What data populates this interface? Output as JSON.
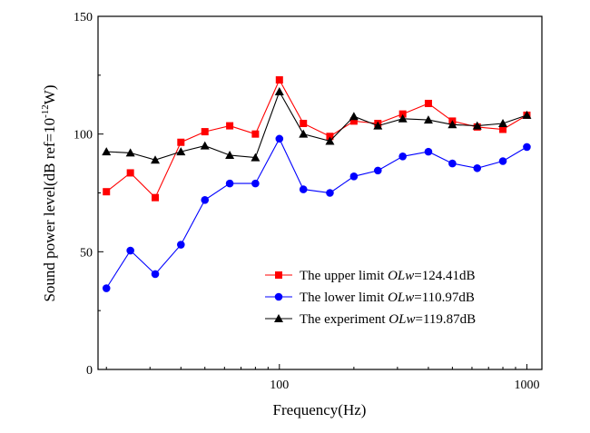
{
  "chart_data": {
    "type": "line",
    "xscale": "log",
    "xlabel": "Frequency(Hz)",
    "ylabel": {
      "main": "Sound power level(dB ref=10",
      "sup": "-12",
      "end": "W)"
    },
    "xlim": [
      18.5,
      1150
    ],
    "ylim": [
      0,
      150
    ],
    "xticks": [
      100,
      1000
    ],
    "xtick_labels": [
      "100",
      "1000"
    ],
    "yticks": [
      0,
      50,
      100,
      150
    ],
    "ytick_labels": [
      "0",
      "50",
      "100",
      "150"
    ],
    "grid": false,
    "legend_position": "bottom-right",
    "x": [
      20,
      25,
      31.5,
      40,
      50,
      63,
      80,
      100,
      125,
      160,
      200,
      250,
      315,
      400,
      500,
      630,
      800,
      1000
    ],
    "series": [
      {
        "name": "The upper limit",
        "suffix_italic": "OLw",
        "suffix_text": "=124.41dB",
        "color": "#ff0000",
        "marker": "square",
        "values": [
          75.5,
          83.5,
          73,
          96.5,
          101,
          103.5,
          100,
          123,
          104.5,
          99,
          105.5,
          104.5,
          108.5,
          113,
          105.5,
          103,
          102,
          108
        ]
      },
      {
        "name": "The lower limit",
        "suffix_italic": "OLw",
        "suffix_text": "=110.97dB",
        "color": "#0000ff",
        "marker": "circle",
        "values": [
          34.5,
          50.5,
          40.5,
          53,
          72,
          79,
          79,
          98,
          76.5,
          75,
          82,
          84.5,
          90.5,
          92.5,
          87.5,
          85.5,
          88.5,
          94.5
        ]
      },
      {
        "name": "The experiment",
        "suffix_italic": "OLw",
        "suffix_text": "=119.87dB",
        "color": "#000000",
        "marker": "triangle",
        "values": [
          92.5,
          92,
          89,
          92.5,
          95,
          91,
          90,
          118,
          100,
          97,
          107.5,
          103.5,
          106.5,
          106,
          104,
          103.5,
          104.5,
          108
        ]
      }
    ]
  }
}
